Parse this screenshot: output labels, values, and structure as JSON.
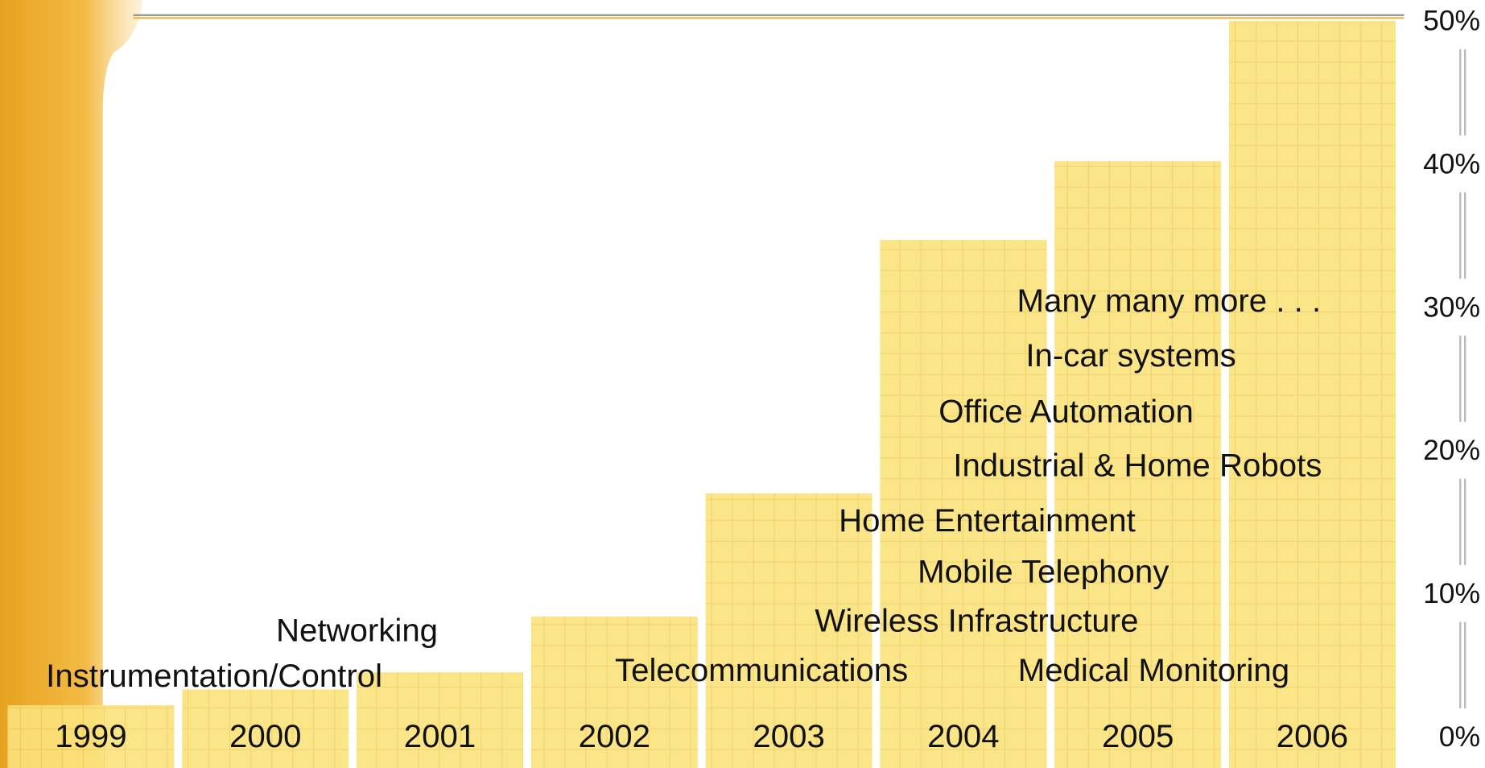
{
  "chart_data": {
    "type": "bar",
    "categories": [
      "1999",
      "2000",
      "2001",
      "2002",
      "2003",
      "2004",
      "2005",
      "2006"
    ],
    "values": [
      2.2,
      3.3,
      4.5,
      8.4,
      17,
      34.7,
      40.2,
      50
    ],
    "color": "#fbe27c",
    "ylim": [
      0,
      50
    ],
    "yticks": [
      {
        "value": 0,
        "label": "0%"
      },
      {
        "value": 10,
        "label": "10%"
      },
      {
        "value": 20,
        "label": "20%"
      },
      {
        "value": 30,
        "label": "30%"
      },
      {
        "value": 40,
        "label": "40%"
      },
      {
        "value": 50,
        "label": "50%"
      }
    ],
    "annotations": [
      "Many many more . . .",
      "In-car systems",
      "Office Automation",
      "Industrial & Home Robots",
      "Home Entertainment",
      "Mobile Telephony",
      "Wireless Infrastructure",
      "Telecommunications",
      "Medical Monitoring",
      "Networking",
      "Instrumentation/Control"
    ]
  }
}
